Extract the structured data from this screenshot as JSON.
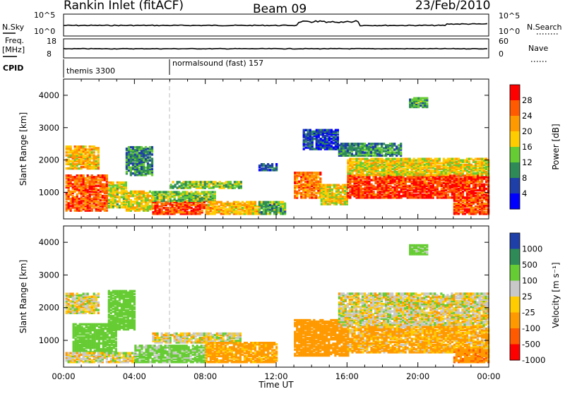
{
  "header": {
    "station": "Rankin Inlet (fitACF)",
    "beam": "Beam 09",
    "date": "23/Feb/2010"
  },
  "top_panels": {
    "nsky_label": "N.Sky",
    "nsky_ticks": [
      "10^5",
      "10^0"
    ],
    "nsearch_label": "N.Search",
    "nsearch_ticks": [
      "10^5",
      "10^0"
    ],
    "freq_label": "Freq.",
    "freq_unit": "[MHz]",
    "freq_ticks": [
      "18",
      "8"
    ],
    "nave_label": "Nave",
    "nave_ticks": [
      "60",
      "0"
    ],
    "cpid_label": "CPID",
    "cpid_segments": [
      {
        "name": "themis 3300",
        "start_hour": 0
      },
      {
        "name": "normalsound (fast) 157",
        "start_hour": 6
      }
    ]
  },
  "power_colorbar": {
    "label": "Power [dB]",
    "ticks": [
      "28",
      "24",
      "20",
      "16",
      "12",
      "8",
      "4"
    ],
    "colors": [
      "#ff0000",
      "#ff5a00",
      "#ff9900",
      "#ffcc00",
      "#66cc33",
      "#2e8b57",
      "#1f3fa8",
      "#0000ff"
    ]
  },
  "velocity_colorbar": {
    "label": "Velocity [m s⁻¹]",
    "ticks": [
      "1000",
      "500",
      "100",
      "25",
      "-25",
      "-100",
      "-500",
      "-1000"
    ],
    "colors": [
      "#1f3fa8",
      "#2e8b57",
      "#66cc33",
      "#c8c8c8",
      "#ffcc00",
      "#ff9900",
      "#ff5a00",
      "#ff0000"
    ]
  },
  "chart_data": [
    {
      "type": "heatmap",
      "title": "Rankin Inlet (fitACF)",
      "ylabel": "Slant Range [km]",
      "xlabel": "Time UT",
      "x_ticks": [
        "00:00",
        "04:00",
        "08:00",
        "12:00",
        "16:00",
        "20:00",
        "00:00"
      ],
      "y_ticks": [
        1000,
        2000,
        3000,
        4000
      ],
      "xlim_hours": [
        0,
        24
      ],
      "ylim_km": [
        180,
        4500
      ],
      "value_label": "Power [dB]",
      "regions": [
        {
          "t0": 0.1,
          "t1": 2.5,
          "r0": 400,
          "r1": 1500,
          "v": 26
        },
        {
          "t0": 0.1,
          "t1": 2.0,
          "r0": 1700,
          "r1": 2400,
          "v": 20
        },
        {
          "t0": 2.5,
          "t1": 3.5,
          "r0": 500,
          "r1": 1300,
          "v": 16
        },
        {
          "t0": 3.5,
          "t1": 5.0,
          "r0": 400,
          "r1": 1000,
          "v": 18
        },
        {
          "t0": 3.5,
          "t1": 5.0,
          "r0": 1500,
          "r1": 2400,
          "v": 10
        },
        {
          "t0": 5.0,
          "t1": 8.0,
          "r0": 300,
          "r1": 700,
          "v": 27
        },
        {
          "t0": 5.0,
          "t1": 8.5,
          "r0": 700,
          "r1": 1000,
          "v": 14
        },
        {
          "t0": 6.0,
          "t1": 10.0,
          "r0": 1100,
          "r1": 1300,
          "v": 14
        },
        {
          "t0": 8.0,
          "t1": 11.0,
          "r0": 300,
          "r1": 700,
          "v": 20
        },
        {
          "t0": 11.0,
          "t1": 12.5,
          "r0": 300,
          "r1": 700,
          "v": 12
        },
        {
          "t0": 11.0,
          "t1": 12.0,
          "r0": 1650,
          "r1": 1850,
          "v": 8
        },
        {
          "t0": 13.0,
          "t1": 14.5,
          "r0": 800,
          "r1": 1600,
          "v": 24
        },
        {
          "t0": 14.5,
          "t1": 16.0,
          "r0": 600,
          "r1": 1200,
          "v": 18
        },
        {
          "t0": 16.0,
          "t1": 24.0,
          "r0": 800,
          "r1": 1500,
          "v": 28
        },
        {
          "t0": 16.0,
          "t1": 24.0,
          "r0": 1500,
          "r1": 2000,
          "v": 18
        },
        {
          "t0": 15.5,
          "t1": 19.0,
          "r0": 2100,
          "r1": 2500,
          "v": 10
        },
        {
          "t0": 13.5,
          "t1": 15.5,
          "r0": 2300,
          "r1": 2900,
          "v": 6
        },
        {
          "t0": 19.5,
          "t1": 20.5,
          "r0": 3600,
          "r1": 3900,
          "v": 12
        },
        {
          "t0": 22.0,
          "t1": 24.0,
          "r0": 300,
          "r1": 800,
          "v": 27
        }
      ]
    },
    {
      "type": "heatmap",
      "ylabel": "Slant Range [km]",
      "xlabel": "Time UT",
      "x_ticks": [
        "00:00",
        "04:00",
        "08:00",
        "12:00",
        "16:00",
        "20:00",
        "00:00"
      ],
      "y_ticks": [
        1000,
        2000,
        3000,
        4000
      ],
      "xlim_hours": [
        0,
        24
      ],
      "ylim_km": [
        180,
        4500
      ],
      "value_label": "Velocity [m s-1]",
      "regions": [
        {
          "t0": 0.1,
          "t1": 2.0,
          "r0": 1800,
          "r1": 2400,
          "v": 0
        },
        {
          "t0": 0.5,
          "t1": 3.0,
          "r0": 600,
          "r1": 1500,
          "v": 300
        },
        {
          "t0": 2.5,
          "t1": 4.0,
          "r0": 1300,
          "r1": 2500,
          "v": 300
        },
        {
          "t0": 0.1,
          "t1": 4.0,
          "r0": 300,
          "r1": 600,
          "v": 0
        },
        {
          "t0": 4.0,
          "t1": 8.0,
          "r0": 300,
          "r1": 800,
          "v": 200
        },
        {
          "t0": 5.0,
          "t1": 10.0,
          "r0": 900,
          "r1": 1200,
          "v": 0
        },
        {
          "t0": 8.0,
          "t1": 12.0,
          "r0": 300,
          "r1": 900,
          "v": -200
        },
        {
          "t0": 13.0,
          "t1": 16.0,
          "r0": 500,
          "r1": 1600,
          "v": -300
        },
        {
          "t0": 15.5,
          "t1": 24.0,
          "r0": 1400,
          "r1": 2400,
          "v": 0
        },
        {
          "t0": 16.0,
          "t1": 24.0,
          "r0": 600,
          "r1": 1400,
          "v": -150
        },
        {
          "t0": 19.5,
          "t1": 20.5,
          "r0": 3600,
          "r1": 3900,
          "v": 200
        },
        {
          "t0": 22.0,
          "t1": 24.0,
          "r0": 300,
          "r1": 700,
          "v": -400
        }
      ]
    }
  ]
}
